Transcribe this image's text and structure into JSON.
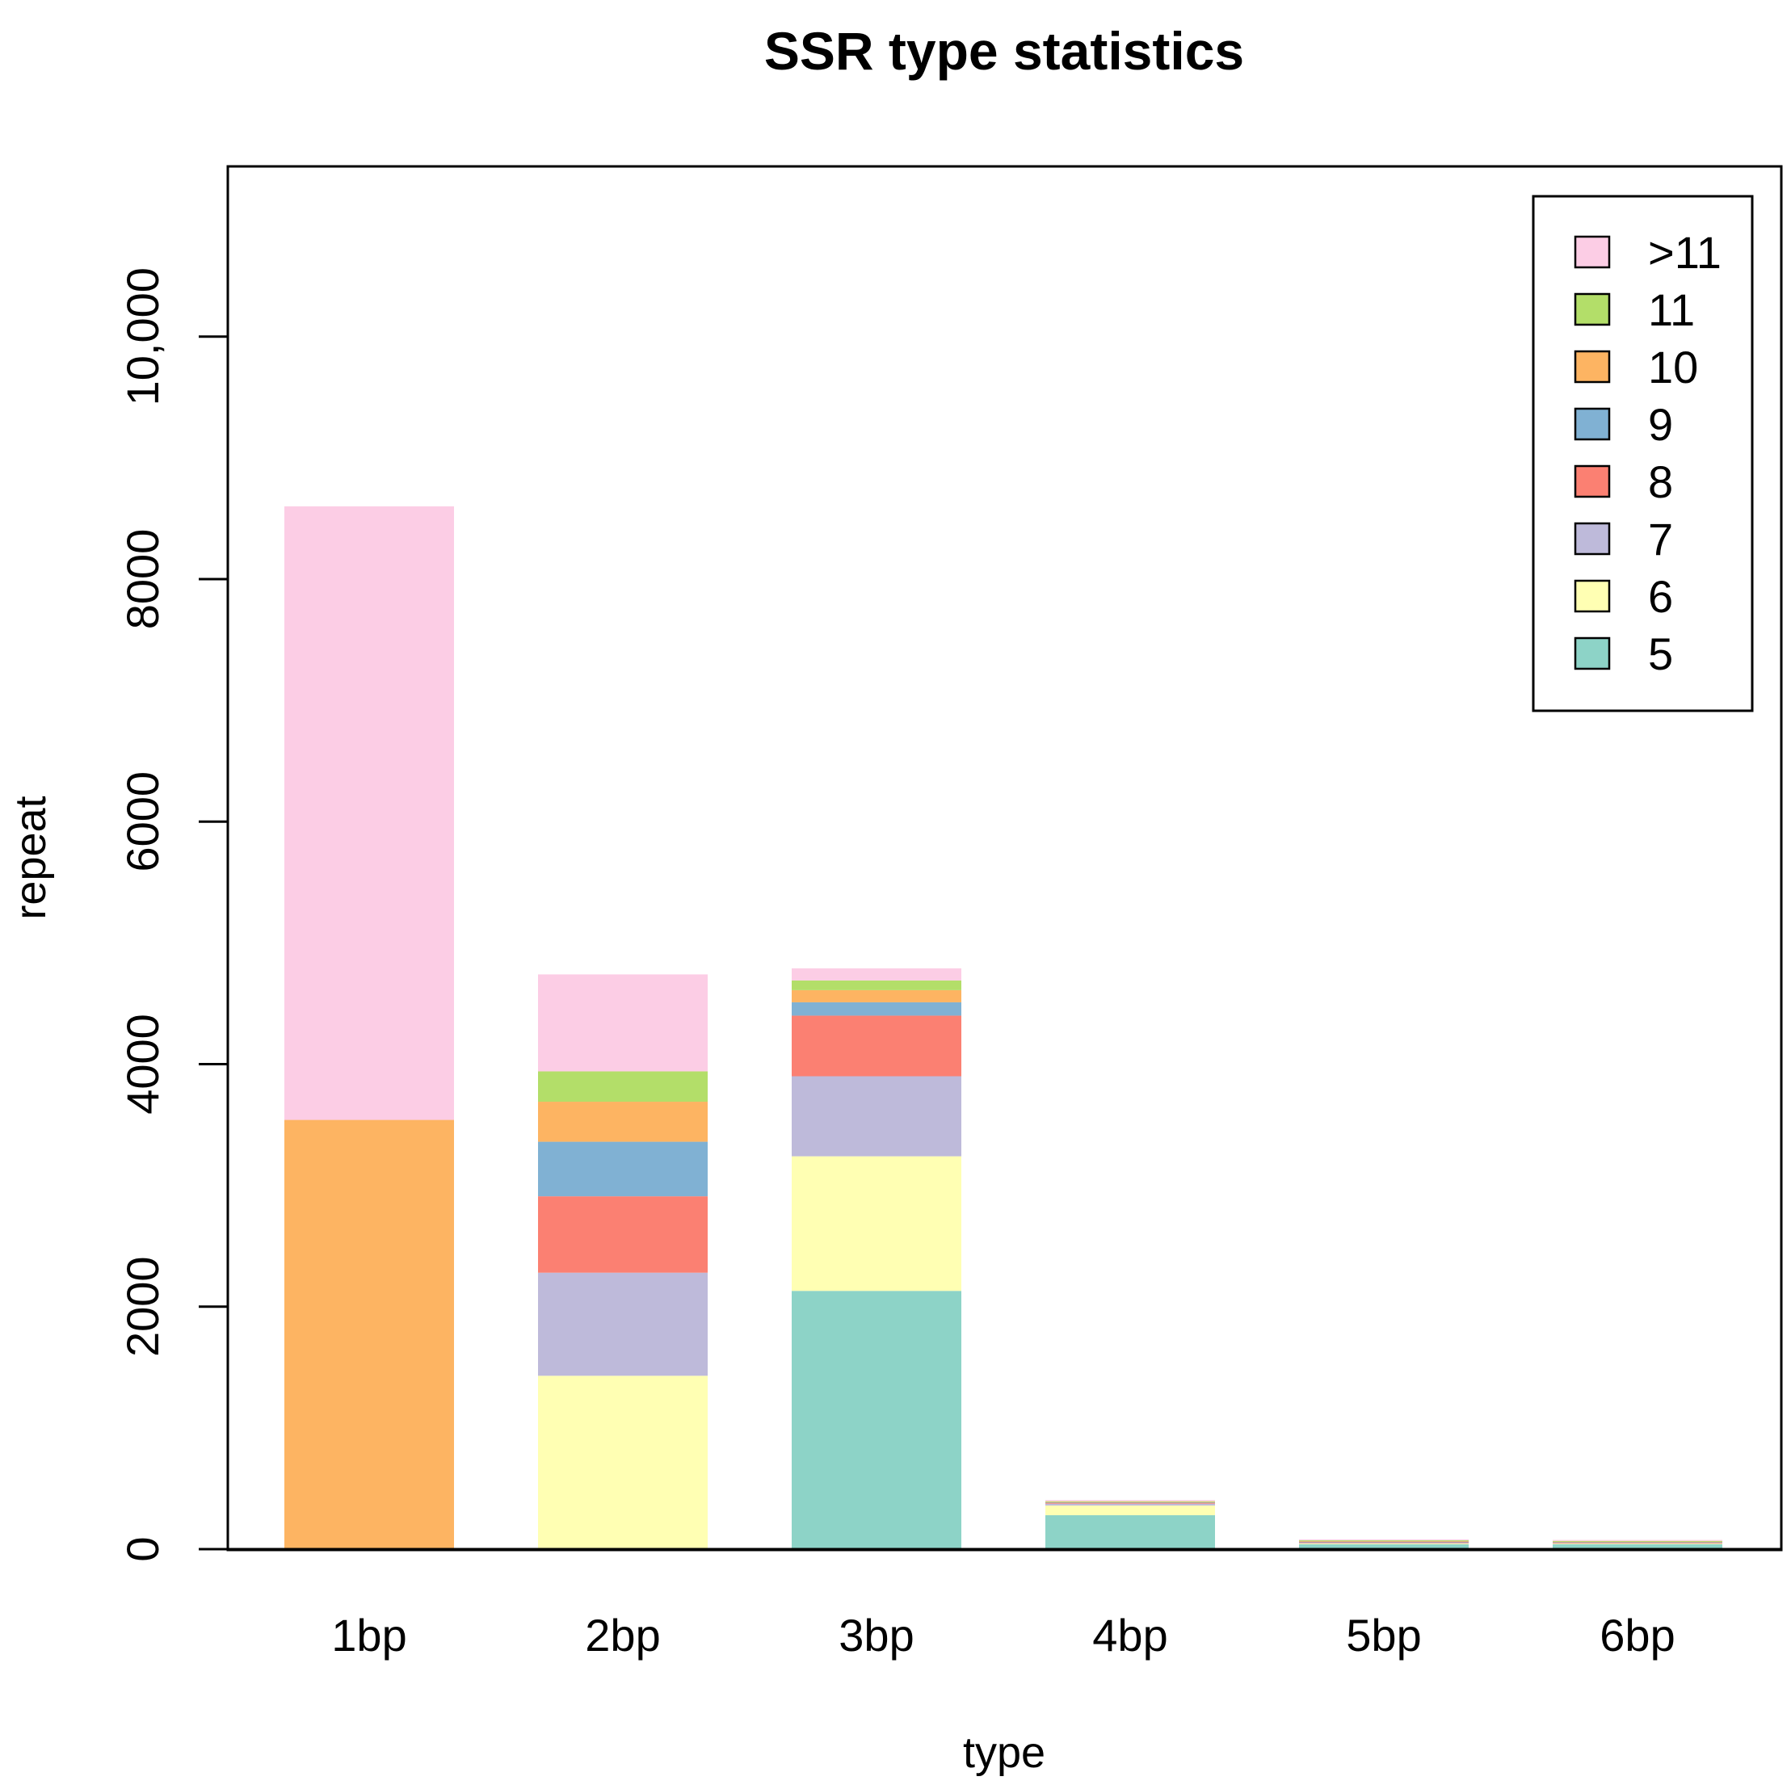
{
  "chart_data": {
    "type": "bar",
    "stacked": true,
    "title": "SSR type statistics",
    "xlabel": "type",
    "ylabel": "repeat",
    "ylim": [
      0,
      11400
    ],
    "yticks": [
      0,
      2000,
      4000,
      6000,
      8000,
      10000
    ],
    "ytick_labels": [
      "0",
      "2000",
      "4000",
      "6000",
      "8000",
      "10,000"
    ],
    "categories": [
      "1bp",
      "2bp",
      "3bp",
      "4bp",
      "5bp",
      "6bp"
    ],
    "series": [
      {
        "name": "5",
        "color": "#8DD3C7",
        "values": [
          0,
          0,
          2130,
          280,
          40,
          40
        ]
      },
      {
        "name": "6",
        "color": "#FFFFB3",
        "values": [
          0,
          1430,
          1110,
          80,
          8,
          8
        ]
      },
      {
        "name": "7",
        "color": "#BEBADA",
        "values": [
          0,
          850,
          660,
          15,
          5,
          4
        ]
      },
      {
        "name": "8",
        "color": "#FB8072",
        "values": [
          0,
          630,
          500,
          8,
          5,
          4
        ]
      },
      {
        "name": "9",
        "color": "#80B1D3",
        "values": [
          0,
          450,
          110,
          5,
          5,
          4
        ]
      },
      {
        "name": "10",
        "color": "#FDB462",
        "values": [
          3540,
          330,
          100,
          4,
          5,
          4
        ]
      },
      {
        "name": "11",
        "color": "#B3DE69",
        "values": [
          0,
          250,
          80,
          3,
          5,
          4
        ]
      },
      {
        "name": ">11",
        "color": "#FCCDE5",
        "values": [
          5060,
          800,
          100,
          10,
          7,
          8
        ]
      }
    ],
    "grid": false,
    "legend_position": "top-right"
  }
}
